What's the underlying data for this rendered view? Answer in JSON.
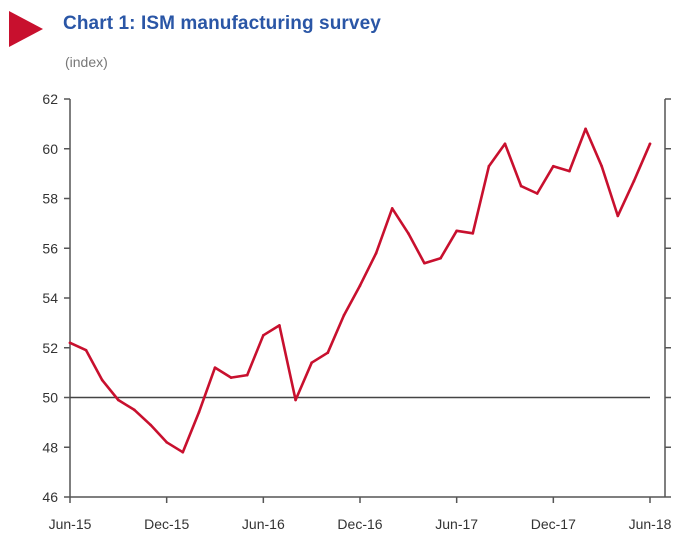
{
  "chart_data": {
    "type": "line",
    "title": "Chart 1: ISM manufacturing survey",
    "subtitle": "(index)",
    "xlabel": "",
    "ylabel": "",
    "x_tick_labels": [
      "Jun-15",
      "Dec-15",
      "Jun-16",
      "Dec-16",
      "Jun-17",
      "Dec-17",
      "Jun-18"
    ],
    "y_ticks": [
      46,
      48,
      50,
      52,
      54,
      56,
      58,
      60,
      62
    ],
    "y_tick_labels": [
      "46",
      "48",
      "50",
      "52",
      "54",
      "56",
      "58",
      "60",
      "62"
    ],
    "ylim": [
      46,
      62
    ],
    "right_axis_ticks_mirrored": true,
    "grid": false,
    "reference_line": {
      "y": 50,
      "color": "#444444"
    },
    "series": [
      {
        "color": "#c8102e",
        "x": [
          "Jun-15",
          "Jul-15",
          "Aug-15",
          "Sep-15",
          "Oct-15",
          "Nov-15",
          "Dec-15",
          "Jan-16",
          "Feb-16",
          "Mar-16",
          "Apr-16",
          "May-16",
          "Jun-16",
          "Jul-16",
          "Aug-16",
          "Sep-16",
          "Oct-16",
          "Nov-16",
          "Dec-16",
          "Jan-17",
          "Feb-17",
          "Mar-17",
          "Apr-17",
          "May-17",
          "Jun-17",
          "Jul-17",
          "Aug-17",
          "Sep-17",
          "Oct-17",
          "Nov-17",
          "Dec-17",
          "Jan-18",
          "Feb-18",
          "Mar-18",
          "Apr-18",
          "May-18",
          "Jun-18"
        ],
        "values": [
          52.2,
          51.9,
          50.7,
          49.9,
          49.5,
          48.9,
          48.2,
          47.8,
          49.4,
          51.2,
          50.8,
          50.9,
          52.5,
          52.9,
          49.9,
          51.4,
          51.8,
          53.3,
          54.5,
          55.8,
          57.6,
          56.6,
          55.4,
          55.6,
          56.7,
          56.6,
          59.3,
          60.2,
          58.5,
          58.2,
          59.3,
          59.1,
          60.8,
          59.3,
          57.3,
          58.7,
          60.2
        ]
      }
    ]
  }
}
